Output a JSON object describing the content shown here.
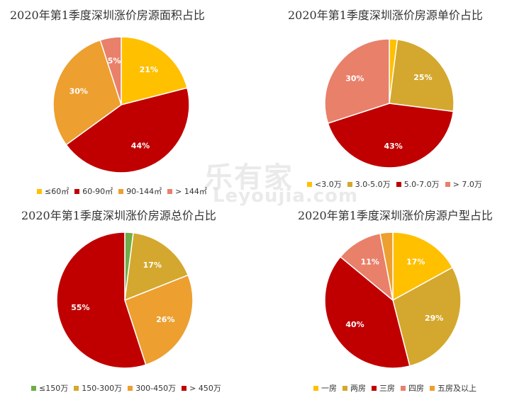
{
  "watermark": {
    "brand": "乐有家",
    "url": "Leyoujia.com"
  },
  "chart_data": [
    {
      "type": "pie",
      "title": "2020年第1季度深圳涨价房源面积占比",
      "categories": [
        "≤60㎡",
        "60-90㎡",
        "90-144㎡",
        "> 144㎡"
      ],
      "values": [
        21,
        44,
        30,
        5
      ],
      "labels": [
        "21%",
        "44%",
        "30%",
        "5%"
      ],
      "colors": [
        "#FFC000",
        "#C00000",
        "#ED9F2F",
        "#E9806A"
      ],
      "legend": "bottom"
    },
    {
      "type": "pie",
      "title": "2020年第1季度深圳涨价房源单价占比",
      "categories": [
        "<3.0万",
        "3.0-5.0万",
        "5.0-7.0万",
        "> 7.0万"
      ],
      "values": [
        2,
        25,
        43,
        30
      ],
      "labels": [
        "",
        "25%",
        "43%",
        "30%"
      ],
      "colors": [
        "#FFC000",
        "#D4A82E",
        "#C00000",
        "#E9806A"
      ],
      "legend": "bottom"
    },
    {
      "type": "pie",
      "title": "2020年第1季度深圳涨价房源总价占比",
      "categories": [
        "≤150万",
        "150-300万",
        "300-450万",
        "> 450万"
      ],
      "values": [
        2,
        17,
        26,
        55
      ],
      "labels": [
        "",
        "17%",
        "26%",
        "55%"
      ],
      "colors": [
        "#70AD47",
        "#D4A82E",
        "#ED9F2F",
        "#C00000"
      ],
      "legend": "bottom"
    },
    {
      "type": "pie",
      "title": "2020年第1季度深圳涨价房源户型占比",
      "categories": [
        "一房",
        "两房",
        "三房",
        "四房",
        "五房及以上"
      ],
      "values": [
        17,
        29,
        40,
        11,
        3
      ],
      "labels": [
        "17%",
        "29%",
        "40%",
        "11%",
        ""
      ],
      "colors": [
        "#FFC000",
        "#D4A82E",
        "#C00000",
        "#E9806A",
        "#ED9F2F"
      ],
      "legend": "bottom"
    }
  ]
}
